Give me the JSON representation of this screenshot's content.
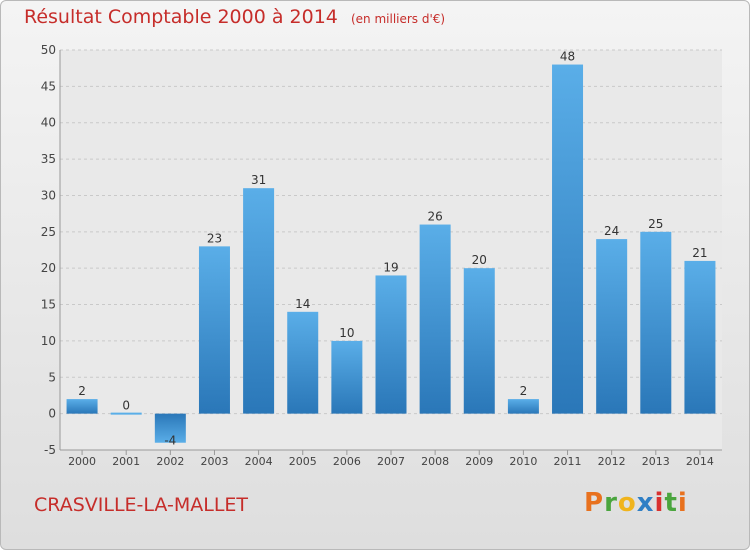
{
  "title": "Résultat Comptable 2000 à 2014",
  "subtitle": "(en milliers d'€)",
  "place": "CRASVILLE-LA-MALLET",
  "logo": [
    "P",
    "r",
    "o",
    "x",
    "i",
    "t",
    "i"
  ],
  "logo_colors": [
    "#e8711e",
    "#4aa53e",
    "#f0b41d",
    "#2f7fc5",
    "#d9312f",
    "#4aa53e",
    "#e8711e"
  ],
  "colors": {
    "title": "#c62d2a",
    "bar_top": "#5aaee8",
    "bar_bottom": "#2a77b8"
  },
  "chart_data": {
    "type": "bar",
    "categories": [
      "2000",
      "2001",
      "2002",
      "2003",
      "2004",
      "2005",
      "2006",
      "2007",
      "2008",
      "2009",
      "2010",
      "2011",
      "2012",
      "2013",
      "2014"
    ],
    "values": [
      2,
      0,
      -4,
      23,
      31,
      14,
      10,
      19,
      26,
      20,
      2,
      48,
      24,
      25,
      21
    ],
    "data_labels": [
      "2",
      "0",
      "-4",
      "23",
      "31",
      "14",
      "10",
      "19",
      "26",
      "20",
      "2",
      "48",
      "24",
      "25",
      "21"
    ],
    "ylim": [
      -5,
      50
    ],
    "yticks": [
      -5,
      0,
      5,
      10,
      15,
      20,
      25,
      30,
      35,
      40,
      45,
      50
    ],
    "grid": true
  }
}
